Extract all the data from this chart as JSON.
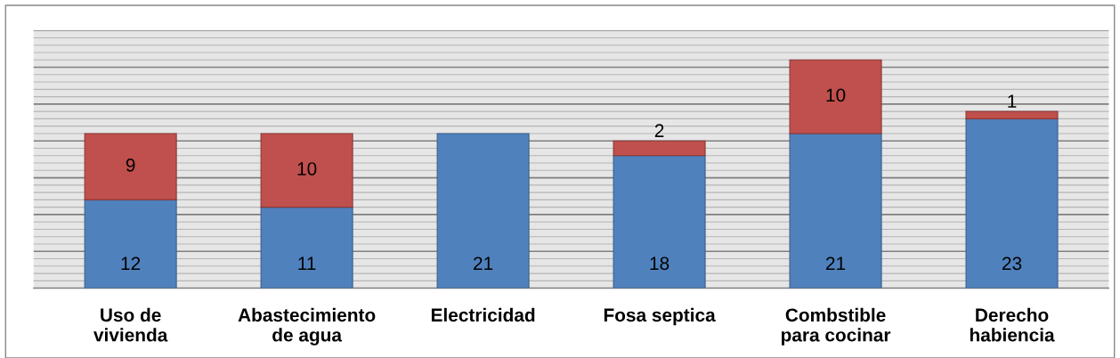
{
  "chart_data": {
    "type": "bar",
    "stacked": true,
    "categories": [
      "Uso de\nvivienda",
      "Abastecimiento\nde agua",
      "Electricidad",
      "Fosa septica",
      "Combstible\npara cocinar",
      "Derecho\nhabiencia"
    ],
    "series": [
      {
        "color": "#4f81bd",
        "values": [
          12,
          11,
          21,
          18,
          21,
          23
        ]
      },
      {
        "color": "#c0504d",
        "values": [
          9,
          10,
          null,
          2,
          10,
          1
        ]
      }
    ],
    "data_labels": true,
    "grid": "y",
    "tick_labels": "x",
    "ylim": [
      0,
      35
    ],
    "yticks": [
      {
        "value": 0,
        "label": null
      },
      {
        "value": 1,
        "label": null
      },
      {
        "value": 2,
        "label": null
      },
      {
        "value": 3,
        "label": null
      },
      {
        "value": 4,
        "label": null
      },
      {
        "value": 5,
        "label": null
      },
      {
        "value": 6,
        "label": null
      },
      {
        "value": 7,
        "label": null
      },
      {
        "value": 8,
        "label": null
      },
      {
        "value": 9,
        "label": null
      },
      {
        "value": 10,
        "label": null
      },
      {
        "value": 11,
        "label": null
      },
      {
        "value": 12,
        "label": null
      },
      {
        "value": 13,
        "label": null
      },
      {
        "value": 14,
        "label": null
      },
      {
        "value": 15,
        "label": null
      },
      {
        "value": 16,
        "label": null
      },
      {
        "value": 17,
        "label": null
      },
      {
        "value": 18,
        "label": null
      },
      {
        "value": 19,
        "label": null
      },
      {
        "value": 20,
        "label": null
      },
      {
        "value": 21,
        "label": null
      },
      {
        "value": 22,
        "label": null
      },
      {
        "value": 23,
        "label": null
      },
      {
        "value": 24,
        "label": null
      },
      {
        "value": 25,
        "label": null
      },
      {
        "value": 26,
        "label": null
      },
      {
        "value": 27,
        "label": null
      },
      {
        "value": 28,
        "label": null
      },
      {
        "value": 29,
        "label": null
      },
      {
        "value": 30,
        "label": null
      },
      {
        "value": 31,
        "label": null
      },
      {
        "value": 32,
        "label": null
      },
      {
        "value": 33,
        "label": null
      },
      {
        "value": 34,
        "label": null
      },
      {
        "value": 35,
        "label": null
      }
    ]
  }
}
